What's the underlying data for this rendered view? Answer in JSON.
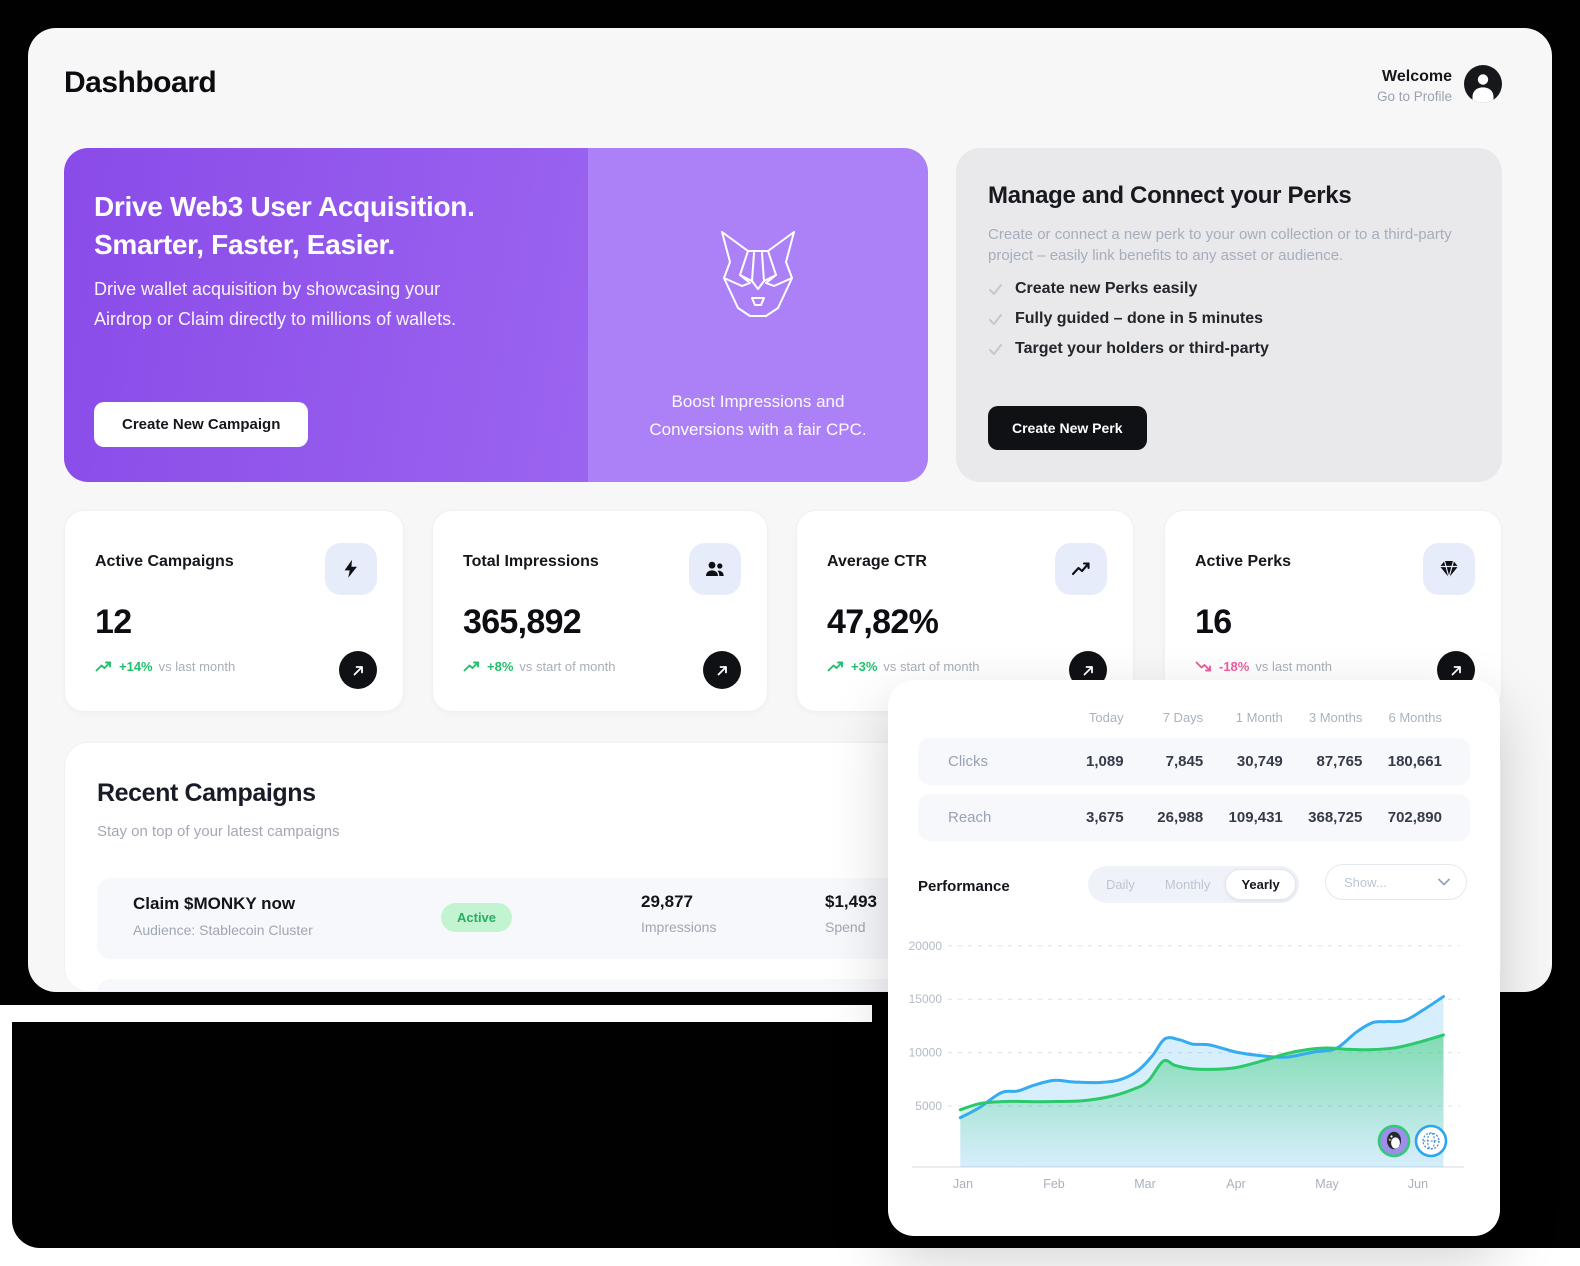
{
  "header": {
    "title": "Dashboard",
    "welcome": "Welcome",
    "profile_link": "Go to Profile"
  },
  "hero": {
    "heading_line1": "Drive Web3 User Acquisition.",
    "heading_line2": "Smarter, Faster, Easier.",
    "body": "Drive wallet acquisition by showcasing your Airdrop or Claim directly to millions of wallets.",
    "cta_label": "Create New Campaign",
    "caption_line1": "Boost Impressions and",
    "caption_line2": "Conversions with a fair CPC.",
    "colors": {
      "left_purple": "#8A4BE8",
      "right_purple": "#AC80F6"
    }
  },
  "perks": {
    "title": "Manage and Connect your Perks",
    "description": "Create or connect a new perk to your own collection or to a third-party project – easily link benefits to any asset or audience.",
    "items": [
      "Create new Perks easily",
      "Fully guided – done in 5 minutes",
      "Target your holders or third-party"
    ],
    "cta_label": "Create New Perk"
  },
  "stats": [
    {
      "title": "Active Campaigns",
      "icon": "bolt-icon",
      "value": "12",
      "delta": "+14%",
      "delta_note": "vs last month",
      "trend": "up",
      "delta_color": "#1FC16B"
    },
    {
      "title": "Total Impressions",
      "icon": "users-icon",
      "value": "365,892",
      "delta": "+8%",
      "delta_note": "vs start of month",
      "trend": "up",
      "delta_color": "#1FC16B"
    },
    {
      "title": "Average CTR",
      "icon": "trending-up-icon",
      "value": "47,82%",
      "delta": "+3%",
      "delta_note": "vs start of month",
      "trend": "up",
      "delta_color": "#1FC16B"
    },
    {
      "title": "Active Perks",
      "icon": "gem-icon",
      "value": "16",
      "delta": "-18%",
      "delta_note": "vs last month",
      "trend": "down",
      "delta_color": "#EE5DA0"
    }
  ],
  "recent": {
    "title": "Recent Campaigns",
    "subtitle": "Stay on top of your latest campaigns",
    "campaigns": [
      {
        "name": "Claim $MONKY now",
        "audience": "Audience: Stablecoin Cluster",
        "status": "Active",
        "impressions": "29,877",
        "impressions_label": "Impressions",
        "spend": "$1,493",
        "spend_label": "Spend"
      }
    ]
  },
  "overlay": {
    "table": {
      "headers": [
        "Today",
        "7 Days",
        "1 Month",
        "3 Months",
        "6 Months"
      ],
      "rows": [
        {
          "label": "Clicks",
          "values": [
            "1,089",
            "7,845",
            "30,749",
            "87,765",
            "180,661"
          ]
        },
        {
          "label": "Reach",
          "values": [
            "3,675",
            "26,988",
            "109,431",
            "368,725",
            "702,890"
          ]
        }
      ]
    },
    "performance": {
      "title": "Performance",
      "range_options": [
        "Daily",
        "Monthly",
        "Yearly"
      ],
      "selected_range": "Yearly",
      "filter_placeholder": "Show..."
    }
  },
  "chart_data": {
    "type": "area",
    "title": "Performance",
    "x_labels": [
      "Jan",
      "Feb",
      "Mar",
      "Apr",
      "May",
      "Jun"
    ],
    "y_ticks": [
      5000,
      10000,
      15000,
      20000
    ],
    "ylim": [
      0,
      21500
    ],
    "grid": "dashed-horizontal",
    "legend_position": "none",
    "series": [
      {
        "name": "clicks",
        "color": "#35ABF0",
        "fill": "rgba(53,171,240,0.20)",
        "points": [
          [
            -0.03,
            3900
          ],
          [
            0.18,
            4850
          ],
          [
            0.42,
            6250
          ],
          [
            0.6,
            6400
          ],
          [
            0.78,
            6950
          ],
          [
            1.0,
            7400
          ],
          [
            1.22,
            7250
          ],
          [
            1.5,
            7200
          ],
          [
            1.72,
            7450
          ],
          [
            1.92,
            8300
          ],
          [
            2.08,
            9700
          ],
          [
            2.22,
            11300
          ],
          [
            2.38,
            11200
          ],
          [
            2.52,
            10800
          ],
          [
            2.72,
            10700
          ],
          [
            3.0,
            10050
          ],
          [
            3.28,
            9700
          ],
          [
            3.55,
            9580
          ],
          [
            3.85,
            10050
          ],
          [
            4.1,
            10380
          ],
          [
            4.32,
            11900
          ],
          [
            4.5,
            12800
          ],
          [
            4.65,
            12900
          ],
          [
            4.85,
            13000
          ],
          [
            5.05,
            13950
          ],
          [
            5.28,
            15250
          ]
        ]
      },
      {
        "name": "reach",
        "color": "#2BC96B",
        "fill_top": "rgba(43,201,107,0.5)",
        "fill_bottom": "rgba(43,201,107,0)",
        "points": [
          [
            -0.03,
            4650
          ],
          [
            0.2,
            5250
          ],
          [
            0.5,
            5430
          ],
          [
            0.8,
            5400
          ],
          [
            1.0,
            5420
          ],
          [
            1.3,
            5480
          ],
          [
            1.6,
            5850
          ],
          [
            1.85,
            6500
          ],
          [
            2.03,
            7300
          ],
          [
            2.2,
            9200
          ],
          [
            2.33,
            8800
          ],
          [
            2.5,
            8500
          ],
          [
            2.75,
            8430
          ],
          [
            3.0,
            8600
          ],
          [
            3.3,
            9250
          ],
          [
            3.55,
            9900
          ],
          [
            3.8,
            10300
          ],
          [
            4.0,
            10430
          ],
          [
            4.25,
            10300
          ],
          [
            4.5,
            10280
          ],
          [
            4.75,
            10450
          ],
          [
            5.0,
            10950
          ],
          [
            5.28,
            11650
          ]
        ]
      }
    ]
  }
}
